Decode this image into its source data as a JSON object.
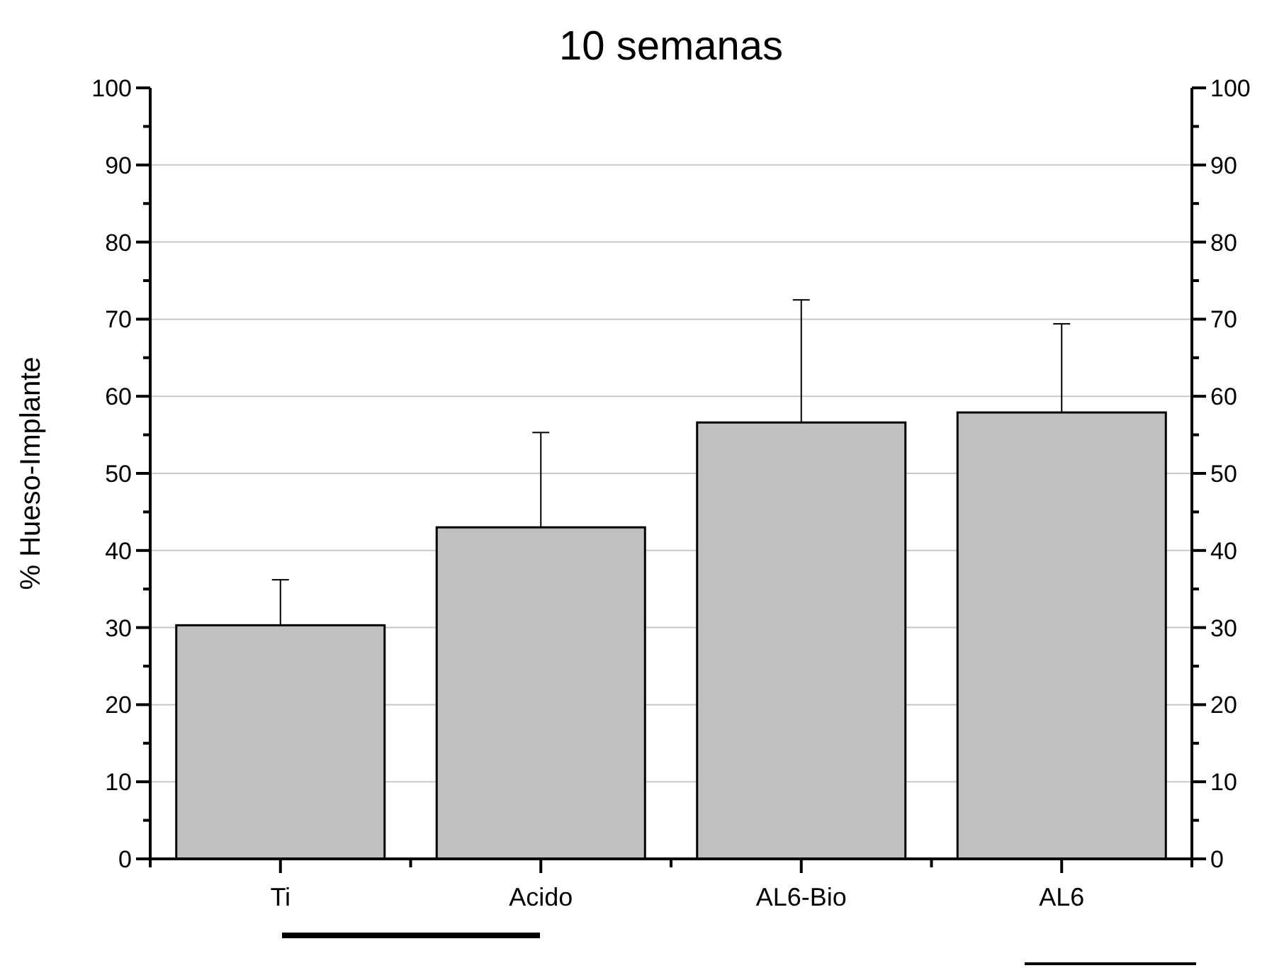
{
  "chart_data": {
    "type": "bar",
    "title": "10 semanas",
    "ylabel": "% Hueso-Implante",
    "categories": [
      "Ti",
      "Acido",
      "AL6-Bio",
      "AL6"
    ],
    "values": [
      30.3,
      43,
      56.6,
      57.9
    ],
    "errors": [
      [
        30.3,
        36.2
      ],
      [
        43,
        55.3
      ],
      [
        56.6,
        72.5
      ],
      [
        57.9,
        69.4
      ]
    ],
    "color": "#c0c0c0",
    "ylim": [
      0,
      100
    ],
    "yticks": [
      0,
      {
        "value": 5,
        "label": null
      },
      10,
      {
        "value": 15,
        "label": null
      },
      20,
      {
        "value": 25,
        "label": null
      },
      30,
      {
        "value": 35,
        "label": null
      },
      40,
      {
        "value": 45,
        "label": null
      },
      50,
      {
        "value": 55,
        "label": null
      },
      60,
      {
        "value": 65,
        "label": null
      },
      70,
      {
        "value": 75,
        "label": null
      },
      80,
      {
        "value": 85,
        "label": null
      },
      90,
      {
        "value": 95,
        "label": null
      },
      100
    ],
    "y2lim": [
      0,
      100
    ],
    "y2ticks": [
      0,
      {
        "value": 5,
        "label": null
      },
      10,
      {
        "value": 15,
        "label": null
      },
      20,
      {
        "value": 25,
        "label": null
      },
      30,
      {
        "value": 35,
        "label": null
      },
      40,
      {
        "value": 45,
        "label": null
      },
      50,
      {
        "value": 55,
        "label": null
      },
      60,
      {
        "value": 65,
        "label": null
      },
      70,
      {
        "value": 75,
        "label": null
      },
      80,
      {
        "value": 85,
        "label": null
      },
      90,
      {
        "value": 95,
        "label": null
      },
      100
    ],
    "grid": "y"
  }
}
